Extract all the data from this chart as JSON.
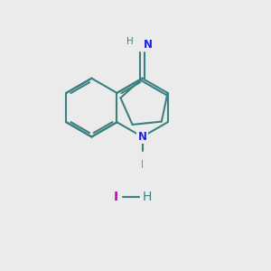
{
  "background_color": "#ebebeb",
  "bond_color": "#3d8080",
  "n_color": "#2020dd",
  "i_color": "#cc00cc",
  "h_color": "#3d8080",
  "line_width": 1.5,
  "figsize": [
    3.0,
    3.0
  ],
  "dpi": 100,
  "xlim": [
    0,
    10
  ],
  "ylim": [
    0,
    10
  ],
  "BL": 1.1
}
